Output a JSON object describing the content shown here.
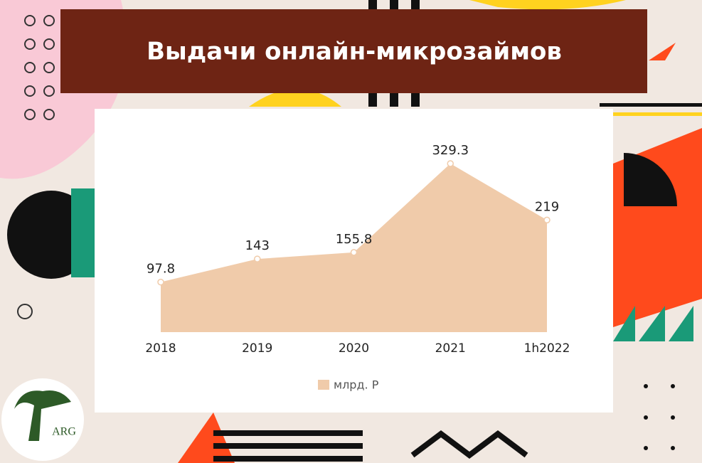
{
  "chart_data": {
    "type": "area",
    "title": "Выдачи онлайн-микрозаймов",
    "categories": [
      "2018",
      "2019",
      "2020",
      "2021",
      "1h2022"
    ],
    "series": [
      {
        "name": "млрд. Р",
        "color": "#f0cbaa",
        "values": [
          97.8,
          143,
          155.8,
          329.3,
          219
        ]
      }
    ],
    "legend": "bottom"
  },
  "logo": {
    "text": "ARG"
  }
}
